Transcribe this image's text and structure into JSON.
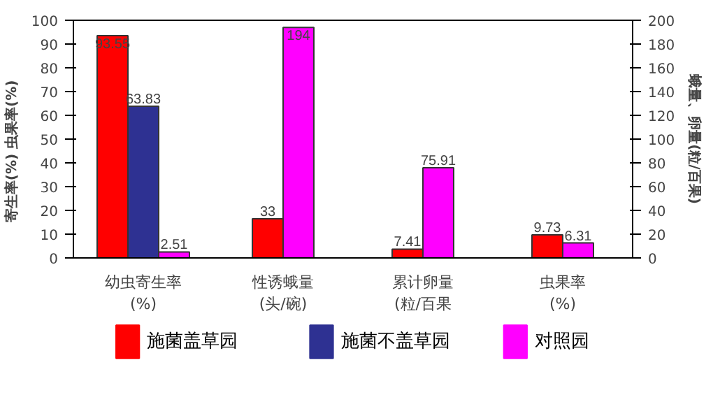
{
  "chart_data": {
    "type": "bar",
    "categories": [
      "幼虫寄生率\n(%)",
      "性诱蛾量\n(头/碗)",
      "累计卵量\n(粒/百果",
      "虫果率\n(%)"
    ],
    "ylabel": "寄生率(%)      虫果率(%)",
    "y2label": "蛾量、卵量(粒/百果)",
    "series": [
      {
        "name": "施菌盖草园",
        "color": "#ff0000",
        "values": [
          93.55,
          null,
          null,
          9.73
        ]
      },
      {
        "name": "施菌不盖草园",
        "color": "#2e3192",
        "values": [
          63.83,
          null,
          null,
          null
        ]
      },
      {
        "name": "对照园",
        "color": "#ff00ff",
        "values": [
          2.51,
          null,
          null,
          6.31
        ]
      },
      {
        "color": "#ff0000",
        "axis": "y2",
        "values": [
          null,
          33,
          7.41,
          null
        ]
      },
      {
        "color": "#ff00ff",
        "axis": "y2",
        "values": [
          null,
          194,
          75.91,
          null
        ]
      }
    ],
    "ylim": [
      0,
      100
    ],
    "yticks": [
      0,
      10,
      20,
      30,
      40,
      50,
      60,
      70,
      80,
      90,
      100
    ],
    "y2lim": [
      0,
      200
    ],
    "y2ticks": [
      0,
      20,
      40,
      60,
      80,
      100,
      120,
      140,
      160,
      180,
      200
    ],
    "data_labels": true,
    "legend": "bottom",
    "grid": false
  }
}
